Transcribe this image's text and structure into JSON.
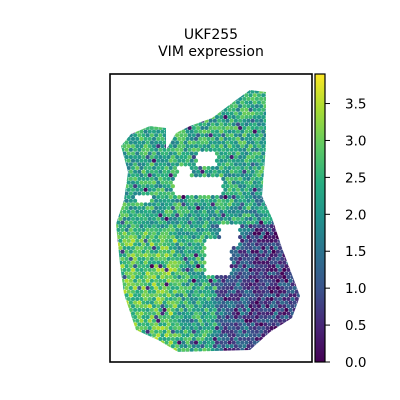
{
  "chart_data": {
    "type": "scatter",
    "title": "UKF255",
    "subtitle": "VIM expression",
    "colorbar": {
      "colormap": "viridis",
      "range": [
        0.0,
        3.9
      ],
      "ticks": [
        0.0,
        0.5,
        1.0,
        1.5,
        2.0,
        2.5,
        3.0,
        3.5
      ],
      "tick_labels": [
        "0.0",
        "0.5",
        "1.0",
        "1.5",
        "2.0",
        "2.5",
        "3.0",
        "3.5"
      ]
    },
    "x_axis_visible": false,
    "y_axis_visible": false,
    "grid": false,
    "value_summary": {
      "dominant_range": [
        2.0,
        3.5
      ],
      "low_expression_region": "lower-right",
      "low_range": [
        0.0,
        1.8
      ]
    }
  }
}
